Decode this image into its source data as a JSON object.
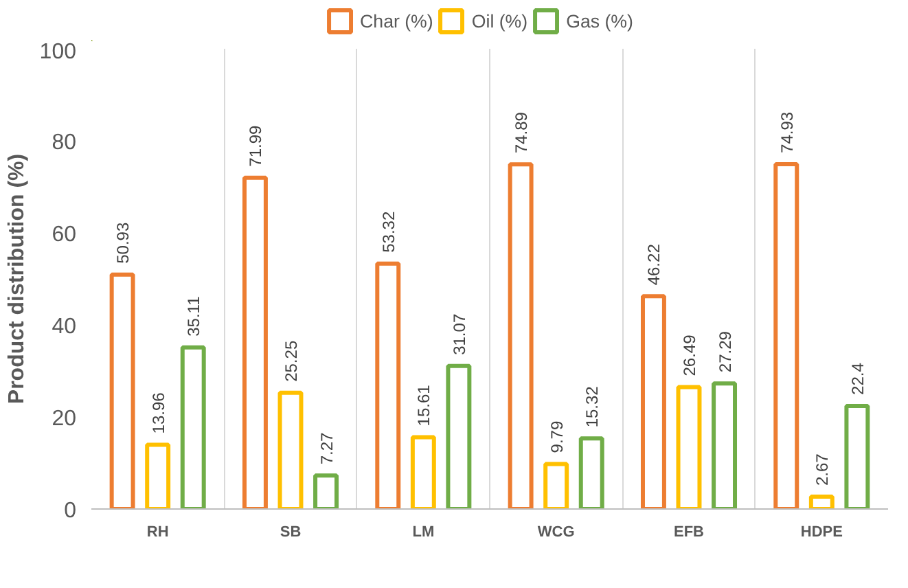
{
  "chart_data": {
    "type": "bar",
    "ylabel": "Product distribution (%)",
    "categories": [
      "RH",
      "SB",
      "LM",
      "WCG",
      "EFB",
      "HDPE"
    ],
    "series": [
      {
        "name": "Char (%)",
        "color": "#ed7d31",
        "values": [
          50.93,
          71.99,
          53.32,
          74.89,
          46.22,
          74.93
        ]
      },
      {
        "name": "Oil (%)",
        "color": "#ffc000",
        "values": [
          13.96,
          25.25,
          15.61,
          9.79,
          26.49,
          2.67
        ]
      },
      {
        "name": "Gas (%)",
        "color": "#70ad47",
        "values": [
          35.11,
          7.27,
          31.07,
          15.32,
          27.29,
          22.4
        ]
      }
    ],
    "ylim": [
      0,
      100
    ],
    "yticks": [
      0,
      20,
      40,
      60,
      80,
      100
    ],
    "grid": "x",
    "legend": "top",
    "data_labels": true
  }
}
